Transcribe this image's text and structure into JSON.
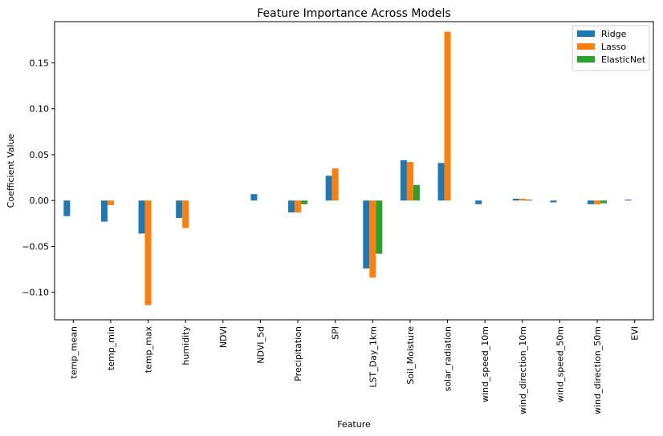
{
  "chart_data": {
    "type": "bar",
    "title": "Feature Importance Across Models",
    "xlabel": "Feature",
    "ylabel": "Coefficient Value",
    "ylim": [
      -0.13,
      0.195
    ],
    "yticks": [
      -0.1,
      -0.05,
      0.0,
      0.05,
      0.1,
      0.15
    ],
    "ytick_labels": [
      "−0.10",
      "−0.05",
      "0.00",
      "0.05",
      "0.10",
      "0.15"
    ],
    "grid": false,
    "legend_position": "top-right",
    "categories": [
      "temp_mean",
      "temp_min",
      "temp_max",
      "humidity",
      "NDVI",
      "NDVI_5d",
      "Precipitation",
      "SPI",
      "LST_Day_1km",
      "Soil_Moisture",
      "solar_radiation",
      "wind_speed_10m",
      "wind_direction_10m",
      "wind_speed_50m",
      "wind_direction_50m",
      "EVI"
    ],
    "series": [
      {
        "name": "Ridge",
        "color": "#1f77b4",
        "values": [
          -0.017,
          -0.023,
          -0.036,
          -0.019,
          0.0,
          0.007,
          -0.013,
          0.027,
          -0.074,
          0.044,
          0.041,
          -0.004,
          0.002,
          -0.002,
          -0.004,
          0.001
        ]
      },
      {
        "name": "Lasso",
        "color": "#ff7f0e",
        "values": [
          0.0,
          -0.005,
          -0.114,
          -0.03,
          0.0,
          0.0,
          -0.013,
          0.035,
          -0.084,
          0.042,
          0.184,
          0.0,
          0.002,
          0.0,
          -0.004,
          0.0
        ]
      },
      {
        "name": "ElasticNet",
        "color": "#2ca02c",
        "values": [
          0.0,
          0.0,
          0.0,
          0.0,
          0.0,
          0.0,
          -0.004,
          0.0,
          -0.058,
          0.017,
          0.0,
          0.0,
          0.001,
          0.0,
          -0.003,
          0.0
        ]
      }
    ]
  }
}
